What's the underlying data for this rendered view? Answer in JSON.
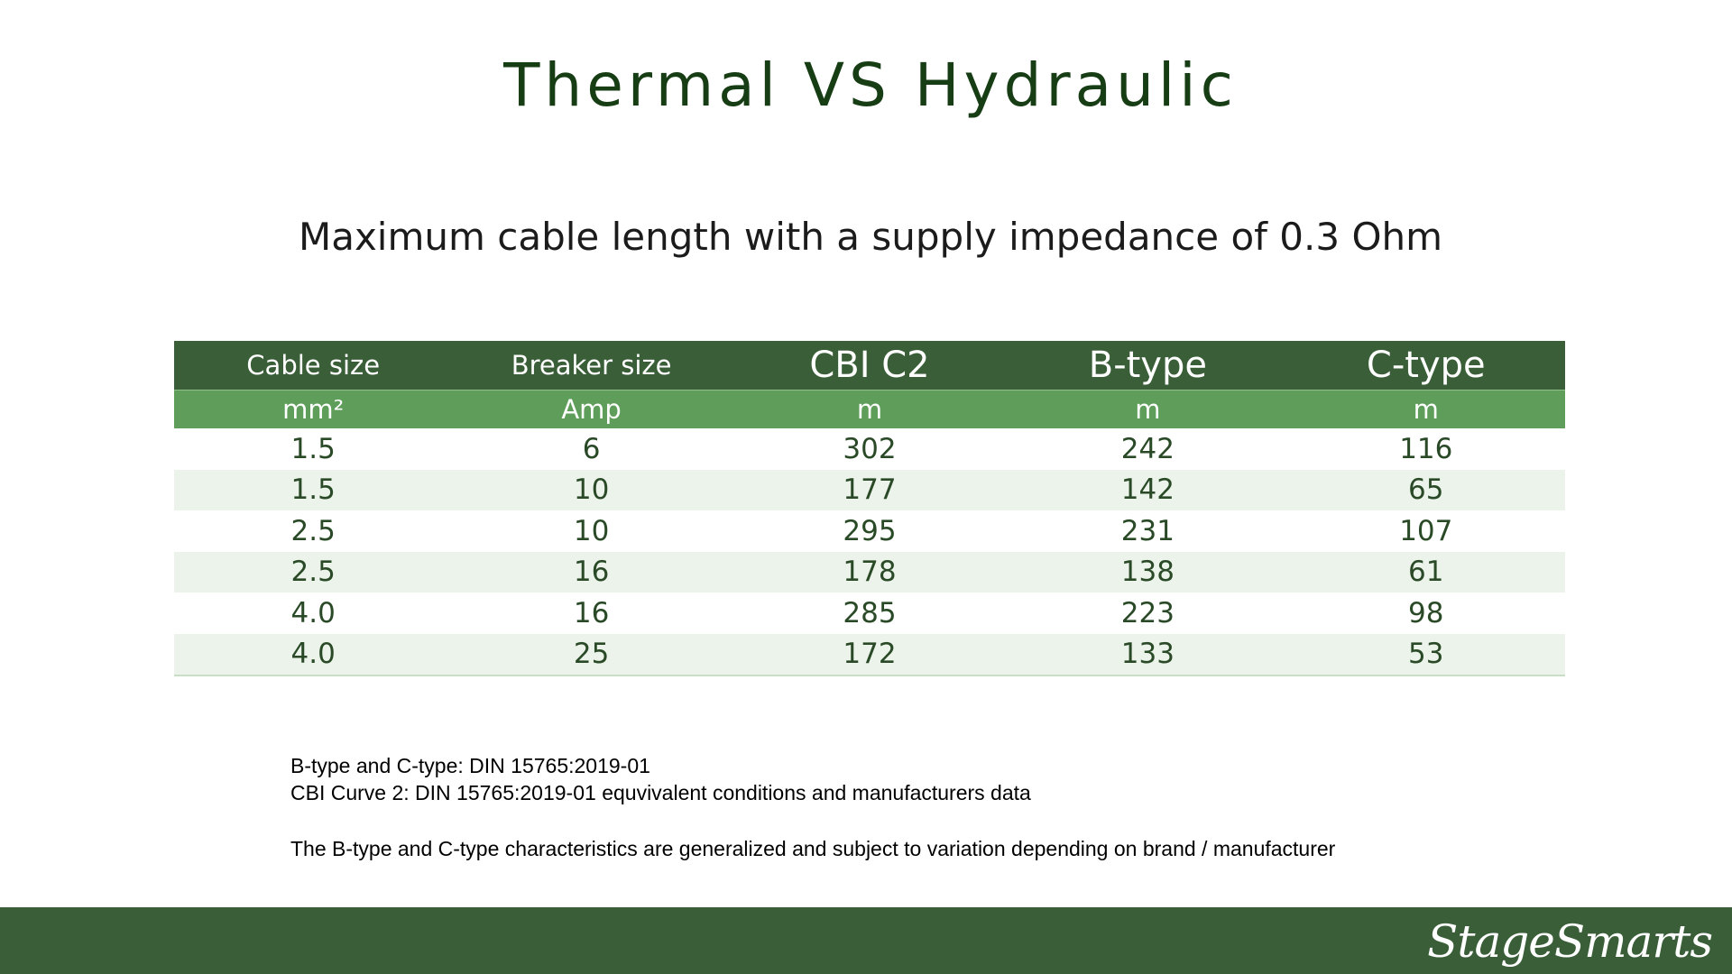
{
  "slide": {
    "title": "Thermal VS Hydraulic",
    "subtitle": "Maximum cable length with a supply impedance of 0.3 Ohm"
  },
  "table": {
    "headers": [
      "Cable size",
      "Breaker size",
      "CBI C2",
      "B-type",
      "C-type"
    ],
    "units": [
      "mm²",
      "Amp",
      "m",
      "m",
      "m"
    ],
    "rows": [
      [
        "1.5",
        "6",
        "302",
        "242",
        "116"
      ],
      [
        "1.5",
        "10",
        "177",
        "142",
        "65"
      ],
      [
        "2.5",
        "10",
        "295",
        "231",
        "107"
      ],
      [
        "2.5",
        "16",
        "178",
        "138",
        "61"
      ],
      [
        "4.0",
        "16",
        "285",
        "223",
        "98"
      ],
      [
        "4.0",
        "25",
        "172",
        "133",
        "53"
      ]
    ]
  },
  "notes": {
    "line1": "B-type and C-type: DIN 15765:2019-01",
    "line2": "CBI Curve 2: DIN 15765:2019-01 equvivalent conditions and manufacturers data",
    "line3": "The B-type and C-type characteristics are generalized and subject to variation depending on brand / manufacturer"
  },
  "footer": {
    "logo_text": "StageSmarts"
  },
  "colors": {
    "header_dark_green": "#3a5f38",
    "header_light_green": "#5e9e5a",
    "title_green": "#173d14",
    "row_stripe": "#ebf3ea"
  }
}
